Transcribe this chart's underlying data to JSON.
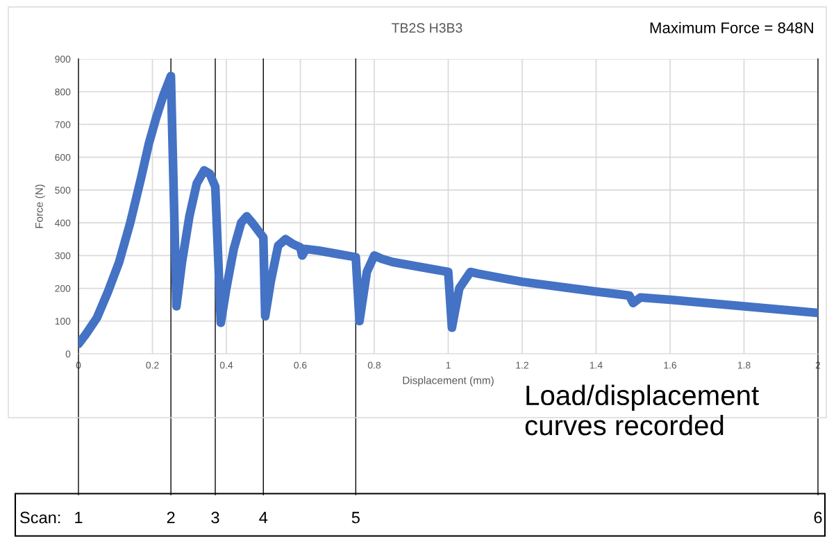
{
  "chart_data": {
    "type": "line",
    "title": "TB2S H3B3",
    "xlabel": "Displacement (mm)",
    "ylabel": "Force (N)",
    "annotations": [
      "Maximum Force = 848N",
      "Load/displacement curves recorded",
      "Scan:",
      "1",
      "2",
      "3",
      "4",
      "5",
      "6"
    ],
    "x": [
      0,
      0.02,
      0.05,
      0.08,
      0.11,
      0.14,
      0.17,
      0.19,
      0.21,
      0.23,
      0.25,
      0.265,
      0.28,
      0.3,
      0.32,
      0.34,
      0.355,
      0.37,
      0.385,
      0.4,
      0.42,
      0.44,
      0.455,
      0.47,
      0.49,
      0.5,
      0.505,
      0.52,
      0.54,
      0.56,
      0.58,
      0.6,
      0.605,
      0.615,
      0.65,
      0.7,
      0.75,
      0.76,
      0.78,
      0.8,
      0.82,
      0.85,
      0.9,
      0.95,
      1.0,
      1.01,
      1.03,
      1.06,
      1.08,
      1.15,
      1.2,
      1.3,
      1.4,
      1.49,
      1.5,
      1.52,
      1.6,
      1.7,
      1.8,
      1.9,
      2.0
    ],
    "series": [
      {
        "color": "#4472c4",
        "values": [
          30,
          60,
          110,
          190,
          280,
          400,
          540,
          640,
          720,
          790,
          848,
          145,
          280,
          420,
          520,
          560,
          550,
          510,
          95,
          200,
          320,
          400,
          420,
          400,
          370,
          355,
          115,
          220,
          330,
          350,
          335,
          325,
          300,
          320,
          315,
          305,
          295,
          100,
          250,
          300,
          290,
          280,
          270,
          260,
          250,
          80,
          200,
          250,
          245,
          230,
          220,
          205,
          190,
          178,
          155,
          172,
          165,
          155,
          145,
          135,
          125
        ]
      }
    ],
    "xlim": [
      0,
      2
    ],
    "ylim": [
      0,
      900
    ],
    "xticks": [
      0,
      0.2,
      0.4,
      0.6,
      0.8,
      1,
      1.2,
      1.4,
      1.6,
      1.8,
      2
    ],
    "yticks": [
      0,
      100,
      200,
      300,
      400,
      500,
      600,
      700,
      800,
      900
    ],
    "ref_lines": [
      {
        "axis": "x",
        "value": 0,
        "color": "#000000"
      },
      {
        "axis": "x",
        "value": 0.25,
        "color": "#000000"
      },
      {
        "axis": "x",
        "value": 0.37,
        "color": "#000000"
      },
      {
        "axis": "x",
        "value": 0.5,
        "color": "#000000"
      },
      {
        "axis": "x",
        "value": 0.75,
        "color": "#000000"
      },
      {
        "axis": "x",
        "value": 2,
        "color": "#000000"
      }
    ],
    "grid": true,
    "line_style": "solid"
  }
}
